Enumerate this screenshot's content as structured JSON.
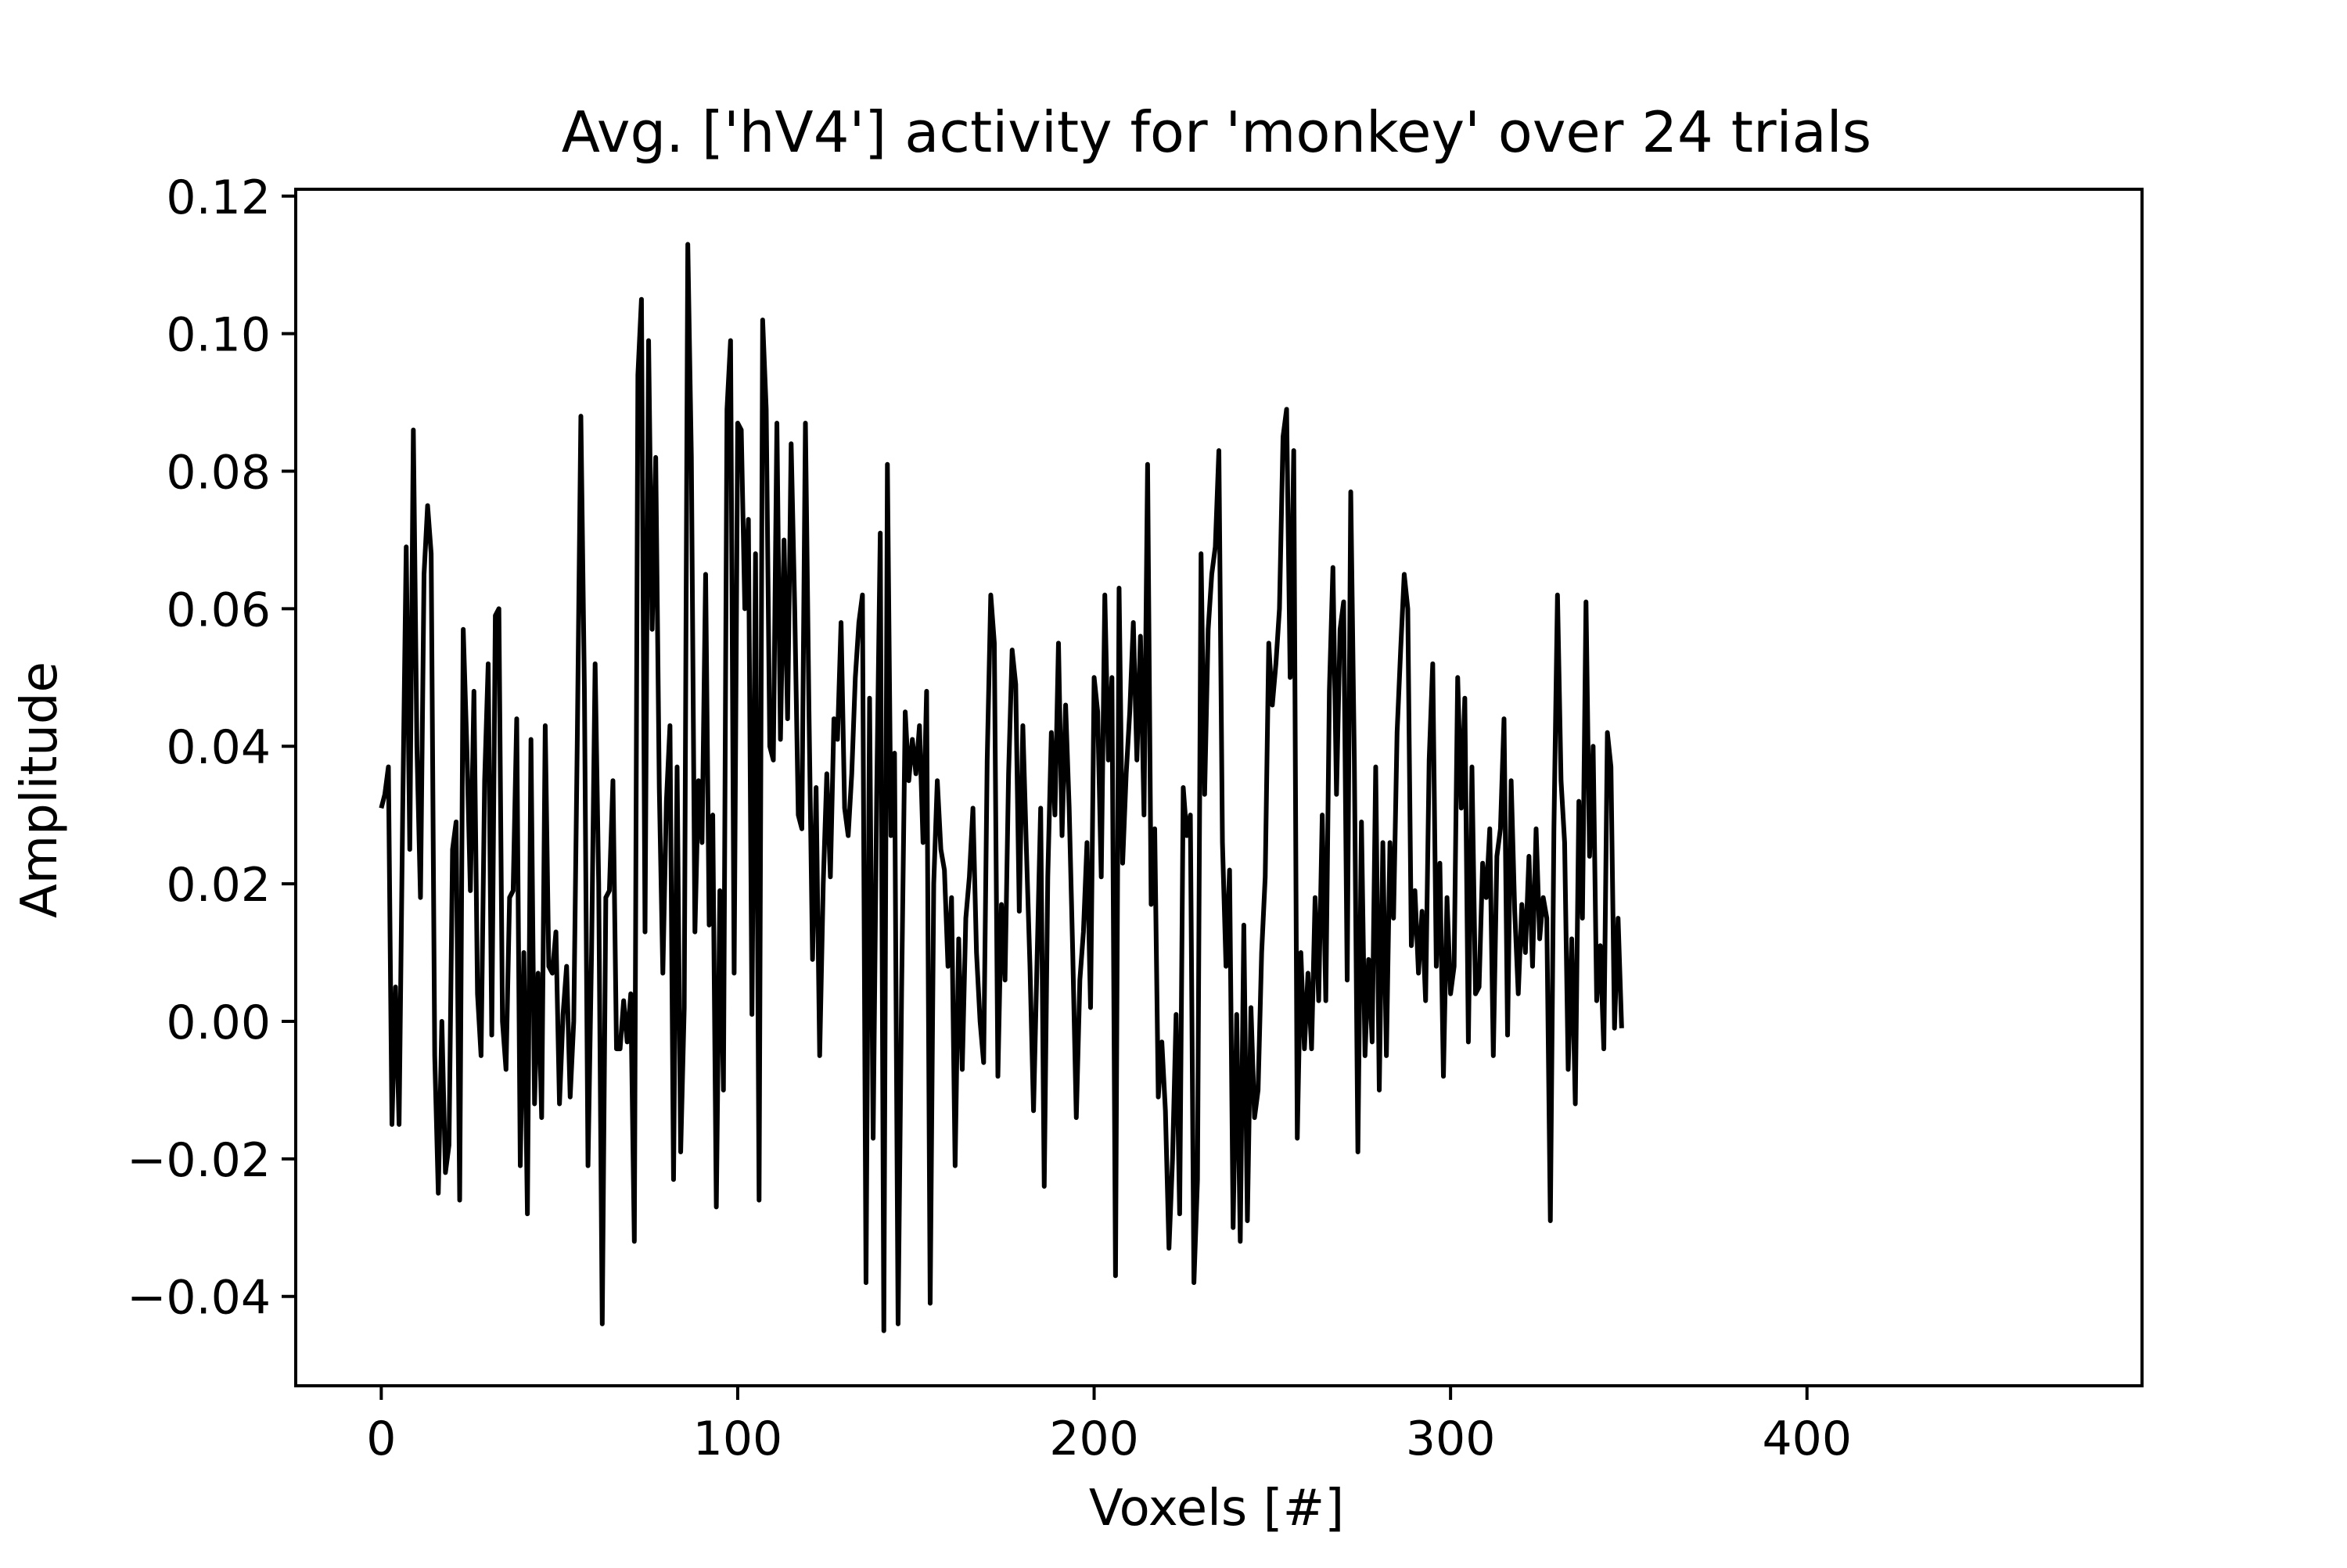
{
  "chart_data": {
    "type": "line",
    "title": "Avg. ['hV4'] activity for 'monkey' over 24 trials",
    "xlabel": "Voxels [#]",
    "ylabel": "Amplitude",
    "xlim": [
      -24,
      494
    ],
    "ylim": [
      -0.053,
      0.121
    ],
    "grid": false,
    "x_ticks": [
      0,
      100,
      200,
      300,
      400
    ],
    "x_tick_labels": [
      "0",
      "100",
      "200",
      "300",
      "400"
    ],
    "y_ticks": [
      -0.04,
      -0.02,
      0.0,
      0.02,
      0.04,
      0.06,
      0.08,
      0.1,
      0.12
    ],
    "y_tick_labels": [
      "−0.04",
      "−0.02",
      "0.00",
      "0.02",
      "0.04",
      "0.06",
      "0.08",
      "0.10",
      "0.12"
    ],
    "line_color": "#000000",
    "series": [
      {
        "x_start": 0,
        "x_step": 1,
        "values": [
          0.031,
          0.033,
          0.037,
          -0.015,
          0.005,
          -0.015,
          0.03,
          0.069,
          0.025,
          0.086,
          0.04,
          0.018,
          0.065,
          0.075,
          0.068,
          -0.005,
          -0.025,
          0.0,
          -0.022,
          -0.018,
          0.025,
          0.029,
          -0.026,
          0.057,
          0.04,
          0.019,
          0.048,
          0.004,
          -0.005,
          0.035,
          0.052,
          -0.002,
          0.059,
          0.06,
          0.0,
          -0.007,
          0.018,
          0.019,
          0.044,
          -0.021,
          0.01,
          -0.028,
          0.041,
          -0.012,
          0.007,
          -0.014,
          0.043,
          0.008,
          0.007,
          0.013,
          -0.012,
          0.001,
          0.008,
          -0.011,
          0.0,
          0.041,
          0.088,
          0.048,
          -0.021,
          0.01,
          0.052,
          0.02,
          -0.044,
          0.018,
          0.019,
          0.035,
          -0.004,
          -0.004,
          0.003,
          -0.003,
          0.004,
          -0.032,
          0.094,
          0.105,
          0.013,
          0.099,
          0.057,
          0.082,
          0.034,
          0.007,
          0.032,
          0.043,
          -0.023,
          0.037,
          -0.019,
          0.002,
          0.113,
          0.082,
          0.013,
          0.035,
          0.026,
          0.065,
          0.014,
          0.03,
          -0.027,
          0.019,
          -0.01,
          0.089,
          0.099,
          0.007,
          0.087,
          0.086,
          0.06,
          0.073,
          0.001,
          0.068,
          -0.026,
          0.102,
          0.089,
          0.04,
          0.038,
          0.087,
          0.041,
          0.07,
          0.044,
          0.084,
          0.06,
          0.03,
          0.028,
          0.087,
          0.045,
          0.009,
          0.034,
          -0.005,
          0.02,
          0.036,
          0.021,
          0.044,
          0.041,
          0.058,
          0.031,
          0.027,
          0.036,
          0.05,
          0.058,
          0.062,
          -0.038,
          0.047,
          -0.017,
          0.033,
          0.071,
          -0.045,
          0.081,
          0.027,
          0.039,
          -0.044,
          0.005,
          0.045,
          0.035,
          0.041,
          0.036,
          0.043,
          0.026,
          0.048,
          -0.041,
          0.02,
          0.035,
          0.025,
          0.022,
          0.008,
          0.018,
          -0.021,
          0.012,
          -0.007,
          0.015,
          0.021,
          0.031,
          0.01,
          0.0,
          -0.006,
          0.038,
          0.062,
          0.055,
          -0.008,
          0.017,
          0.006,
          0.036,
          0.054,
          0.049,
          0.016,
          0.043,
          0.025,
          0.008,
          -0.013,
          0.009,
          0.031,
          -0.024,
          0.021,
          0.042,
          0.03,
          0.055,
          0.027,
          0.046,
          0.031,
          0.01,
          -0.014,
          0.006,
          0.013,
          0.026,
          0.002,
          0.05,
          0.045,
          0.021,
          0.062,
          0.038,
          0.05,
          -0.037,
          0.063,
          0.023,
          0.036,
          0.045,
          0.058,
          0.038,
          0.056,
          0.03,
          0.081,
          0.017,
          0.028,
          -0.011,
          -0.003,
          -0.013,
          -0.033,
          -0.02,
          0.001,
          -0.028,
          0.034,
          0.027,
          0.03,
          -0.038,
          -0.023,
          0.068,
          0.033,
          0.057,
          0.065,
          0.069,
          0.083,
          0.026,
          0.008,
          0.022,
          -0.03,
          0.001,
          -0.032,
          0.014,
          -0.029,
          0.002,
          -0.014,
          -0.01,
          0.01,
          0.021,
          0.055,
          0.046,
          0.052,
          0.06,
          0.085,
          0.089,
          0.05,
          0.083,
          -0.017,
          0.01,
          -0.004,
          0.007,
          -0.004,
          0.018,
          0.003,
          0.03,
          0.003,
          0.048,
          0.066,
          0.033,
          0.057,
          0.061,
          0.006,
          0.077,
          0.038,
          -0.019,
          0.029,
          -0.005,
          0.009,
          -0.003,
          0.037,
          -0.01,
          0.026,
          -0.005,
          0.026,
          0.015,
          0.042,
          0.054,
          0.065,
          0.06,
          0.011,
          0.019,
          0.007,
          0.016,
          0.003,
          0.038,
          0.052,
          0.008,
          0.023,
          -0.008,
          0.018,
          0.004,
          0.008,
          0.05,
          0.031,
          0.047,
          -0.003,
          0.037,
          0.004,
          0.005,
          0.023,
          0.018,
          0.028,
          -0.005,
          0.024,
          0.028,
          0.044,
          -0.002,
          0.035,
          0.016,
          0.004,
          0.017,
          0.01,
          0.024,
          0.008,
          0.028,
          0.012,
          0.018,
          0.015,
          -0.029,
          0.028,
          0.062,
          0.035,
          0.026,
          -0.007,
          0.012,
          -0.012,
          0.032,
          0.015,
          0.061,
          0.024,
          0.04,
          0.003,
          0.011,
          -0.004,
          0.042,
          0.037,
          -0.001,
          0.015,
          -0.001
        ]
      }
    ]
  }
}
